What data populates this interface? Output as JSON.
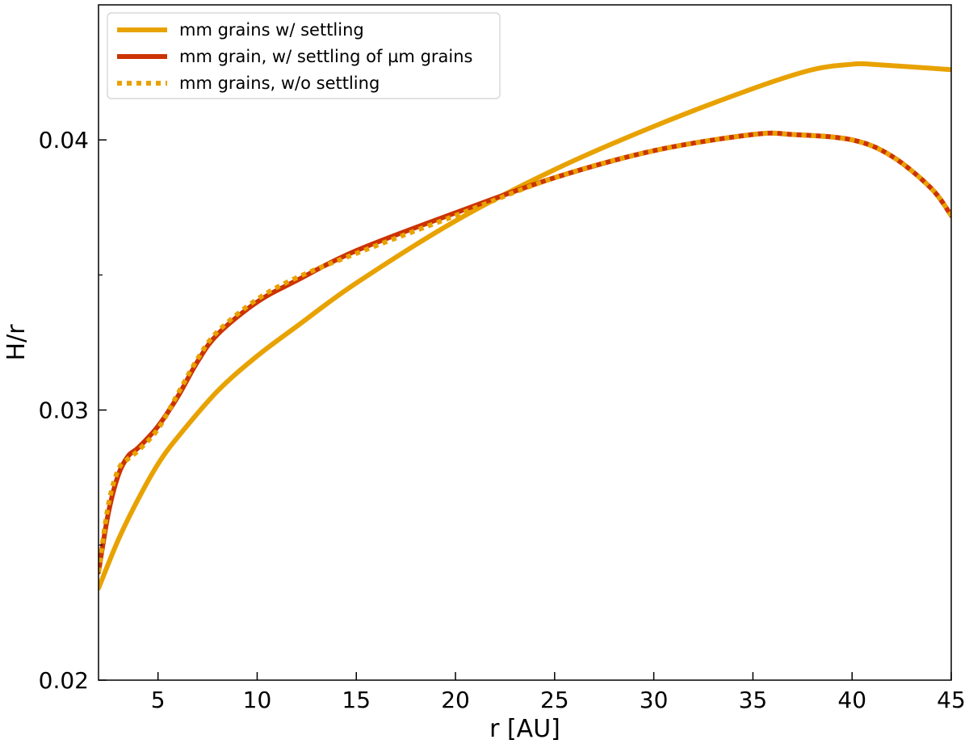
{
  "chart_data": {
    "type": "line",
    "title": "",
    "xlabel": "r [AU]",
    "ylabel": "H/r",
    "xlim": [
      2,
      45
    ],
    "ylim": [
      0.02,
      0.045
    ],
    "x_ticks": [
      5,
      10,
      15,
      20,
      25,
      30,
      35,
      40,
      45
    ],
    "x_tick_labels": [
      "5",
      "10",
      "15",
      "20",
      "25",
      "30",
      "35",
      "40",
      "45"
    ],
    "y_ticks": [
      0.02,
      0.03,
      0.04
    ],
    "y_tick_labels": [
      "0.02",
      "0.03",
      "0.04"
    ],
    "y_minor_ticks": [
      0.025,
      0.035
    ],
    "grid": false,
    "legend_position": "top-left",
    "colors": {
      "orange": "#E8A200",
      "red": "#CC3300"
    },
    "series": [
      {
        "name": "mm grains w/ settling",
        "color": "#E8A200",
        "style": "solid",
        "x": [
          2,
          3,
          4,
          5,
          6,
          8,
          10,
          12,
          15,
          20,
          25,
          30,
          35,
          38,
          40,
          41,
          45
        ],
        "y": [
          0.0234,
          0.0252,
          0.0267,
          0.028,
          0.029,
          0.0307,
          0.032,
          0.0331,
          0.0347,
          0.037,
          0.0389,
          0.0405,
          0.0419,
          0.0426,
          0.0428,
          0.0428,
          0.0426
        ]
      },
      {
        "name": "mm grain, w/ settling of µm grains",
        "color": "#CC3300",
        "style": "solid",
        "x": [
          2,
          2.5,
          3,
          3.5,
          4,
          5,
          6,
          7,
          8,
          10,
          12,
          15,
          20,
          25,
          30,
          35,
          37,
          40,
          42,
          44,
          45
        ],
        "y": [
          0.024,
          0.0262,
          0.0276,
          0.0283,
          0.0286,
          0.0294,
          0.0305,
          0.0318,
          0.0328,
          0.034,
          0.0348,
          0.0359,
          0.0373,
          0.0386,
          0.0396,
          0.0402,
          0.0402,
          0.04,
          0.0394,
          0.0382,
          0.0372
        ]
      },
      {
        "name": "mm grains, w/o settling",
        "color": "#E8A200",
        "style": "dotted",
        "x": [
          2,
          2.5,
          3,
          3.5,
          4,
          5,
          6,
          7,
          8,
          10,
          12,
          15,
          20,
          25,
          30,
          35,
          37,
          40,
          42,
          44,
          45
        ],
        "y": [
          0.024,
          0.0265,
          0.0278,
          0.0282,
          0.0285,
          0.0293,
          0.0306,
          0.0319,
          0.0329,
          0.0341,
          0.0349,
          0.0358,
          0.0372,
          0.0386,
          0.0396,
          0.0402,
          0.0402,
          0.04,
          0.0394,
          0.0382,
          0.0372
        ]
      }
    ]
  }
}
